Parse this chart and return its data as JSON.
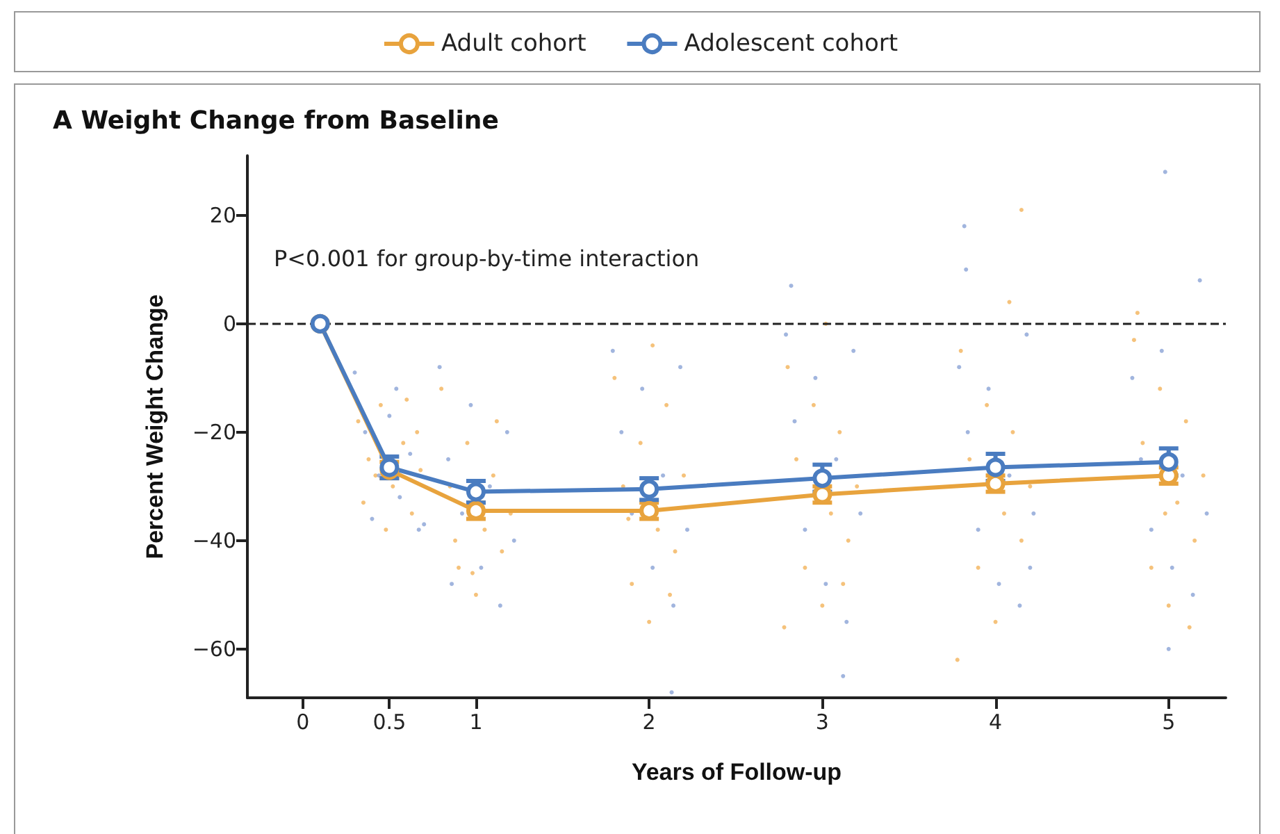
{
  "chart_data": {
    "type": "line",
    "title": "A Weight Change from Baseline",
    "xlabel": "Years of Follow-up",
    "ylabel": "Percent Weight Change",
    "annotations": [
      "P<0.001 for group-by-time interaction"
    ],
    "xlim": [
      -0.32,
      5.33
    ],
    "xticks": [
      0,
      0.5,
      1,
      2,
      3,
      4,
      5
    ],
    "ylim": [
      -69,
      31
    ],
    "yticks": [
      -60,
      -40,
      -20,
      0,
      20
    ],
    "grid": false,
    "legend": "top",
    "marker": "circle",
    "line_style": "solid",
    "ref_lines": [
      {
        "axis": "y",
        "value": 0,
        "line_style": "dashed",
        "color": "#222222"
      }
    ],
    "series": [
      {
        "type": "scatter",
        "color": "#f2b35a",
        "x": [
          0.32,
          0.38,
          0.45,
          0.52,
          0.58,
          0.63,
          0.68,
          0.35,
          0.48,
          0.6,
          0.42,
          0.66,
          0.8,
          0.85,
          0.9,
          0.95,
          1.0,
          1.05,
          1.1,
          1.15,
          1.2,
          0.88,
          1.12,
          0.98,
          1.8,
          1.85,
          1.9,
          1.95,
          2.0,
          2.05,
          2.1,
          2.15,
          2.2,
          1.88,
          2.02,
          2.12,
          2.8,
          2.85,
          2.9,
          2.95,
          3.0,
          3.05,
          3.1,
          3.15,
          3.2,
          2.78,
          3.02,
          3.12,
          3.8,
          3.85,
          3.9,
          3.95,
          4.0,
          4.05,
          4.1,
          4.15,
          4.2,
          3.78,
          4.15,
          4.08,
          4.8,
          4.85,
          4.9,
          4.95,
          5.0,
          5.05,
          5.1,
          5.15,
          5.2,
          4.82,
          5.12,
          4.98
        ],
        "values": [
          -18,
          -25,
          -15,
          -30,
          -22,
          -35,
          -27,
          -33,
          -38,
          -14,
          -28,
          -20,
          -12,
          -30,
          -45,
          -22,
          -50,
          -38,
          -28,
          -42,
          -35,
          -40,
          -18,
          -46,
          -10,
          -30,
          -48,
          -22,
          -55,
          -38,
          -15,
          -42,
          -28,
          -36,
          -4,
          -50,
          -8,
          -25,
          -45,
          -15,
          -52,
          -35,
          -20,
          -40,
          -30,
          -56,
          0,
          -48,
          -5,
          -25,
          -45,
          -15,
          -55,
          -35,
          -20,
          -40,
          -30,
          -62,
          21,
          4,
          -3,
          -22,
          -45,
          -12,
          -52,
          -33,
          -18,
          -40,
          -28,
          2,
          -56,
          -35
        ]
      },
      {
        "type": "scatter",
        "color": "#8aa3d6",
        "x": [
          0.3,
          0.36,
          0.44,
          0.5,
          0.56,
          0.62,
          0.7,
          0.4,
          0.54,
          0.67,
          0.79,
          0.84,
          0.92,
          0.97,
          1.03,
          1.08,
          1.14,
          1.18,
          1.22,
          0.86,
          1.79,
          1.84,
          1.9,
          1.96,
          2.02,
          2.08,
          2.14,
          2.18,
          2.22,
          2.13,
          2.79,
          2.84,
          2.9,
          2.96,
          3.02,
          3.08,
          3.14,
          3.18,
          3.22,
          2.82,
          3.12,
          3.79,
          3.84,
          3.9,
          3.96,
          4.02,
          4.08,
          4.14,
          4.18,
          4.22,
          3.82,
          3.83,
          4.2,
          4.79,
          4.84,
          4.9,
          4.96,
          5.02,
          5.08,
          5.14,
          5.18,
          5.22,
          4.98,
          5.0
        ],
        "values": [
          -9,
          -20,
          -28,
          -17,
          -32,
          -24,
          -37,
          -36,
          -12,
          -38,
          -8,
          -25,
          -35,
          -15,
          -45,
          -30,
          -52,
          -20,
          -40,
          -48,
          -5,
          -20,
          -35,
          -12,
          -45,
          -28,
          -52,
          -8,
          -38,
          -68,
          -2,
          -18,
          -38,
          -10,
          -48,
          -25,
          -55,
          -5,
          -35,
          7,
          -65,
          -8,
          -20,
          -38,
          -12,
          -48,
          -28,
          -52,
          -2,
          -35,
          18,
          10,
          -45,
          -10,
          -25,
          -38,
          -5,
          -45,
          -28,
          -50,
          8,
          -35,
          28,
          -60
        ]
      },
      {
        "name": "Adult cohort",
        "color": "#e8a33d",
        "x": [
          0.1,
          0.5,
          1,
          2,
          3,
          4,
          5
        ],
        "values": [
          0,
          -27,
          -34.5,
          -34.5,
          -31.5,
          -29.5,
          -28
        ],
        "errors": [
          null,
          1.5,
          1.5,
          1.5,
          1.5,
          1.5,
          1.5
        ]
      },
      {
        "name": "Adolescent cohort",
        "color": "#4a7cc0",
        "x": [
          0.1,
          0.5,
          1,
          2,
          3,
          4,
          5
        ],
        "values": [
          0,
          -26.5,
          -31,
          -30.5,
          -28.5,
          -26.5,
          -25.5
        ],
        "errors": [
          null,
          2,
          2,
          2,
          2.5,
          2.5,
          2.5
        ]
      }
    ]
  }
}
